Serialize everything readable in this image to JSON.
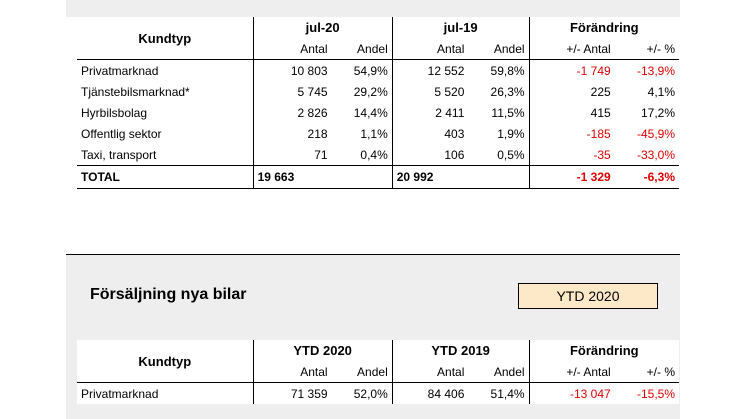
{
  "table1": {
    "kundtyp_label": "Kundtyp",
    "period_a": "jul-20",
    "period_b": "jul-19",
    "change_label": "Förändring",
    "sub_antal": "Antal",
    "sub_andel": "Andel",
    "sub_change_abs": "+/- Antal",
    "sub_change_pct": "+/- %",
    "rows": [
      {
        "name": "Privatmarknad",
        "a_antal": "10 803",
        "a_andel": "54,9%",
        "b_antal": "12 552",
        "b_andel": "59,8%",
        "chg": "-1 749",
        "pct": "-13,9%",
        "chg_neg": true,
        "pct_neg": true
      },
      {
        "name": "Tjänstebilsmarknad*",
        "a_antal": "5 745",
        "a_andel": "29,2%",
        "b_antal": "5 520",
        "b_andel": "26,3%",
        "chg": "225",
        "pct": "4,1%",
        "chg_neg": false,
        "pct_neg": false
      },
      {
        "name": "Hyrbilsbolag",
        "a_antal": "2 826",
        "a_andel": "14,4%",
        "b_antal": "2 411",
        "b_andel": "11,5%",
        "chg": "415",
        "pct": "17,2%",
        "chg_neg": false,
        "pct_neg": false
      },
      {
        "name": "Offentlig sektor",
        "a_antal": "218",
        "a_andel": "1,1%",
        "b_antal": "403",
        "b_andel": "1,9%",
        "chg": "-185",
        "pct": "-45,9%",
        "chg_neg": true,
        "pct_neg": true
      },
      {
        "name": "Taxi, transport",
        "a_antal": "71",
        "a_andel": "0,4%",
        "b_antal": "106",
        "b_andel": "0,5%",
        "chg": "-35",
        "pct": "-33,0%",
        "chg_neg": true,
        "pct_neg": true
      }
    ],
    "total": {
      "name": "TOTAL",
      "a_antal": "19 663",
      "b_antal": "20 992",
      "chg": "-1 329",
      "pct": "-6,3%"
    }
  },
  "section2": {
    "title": "Försäljning nya bilar",
    "selector_value": "YTD 2020"
  },
  "table2": {
    "kundtyp_label": "Kundtyp",
    "period_a": "YTD 2020",
    "period_b": "YTD 2019",
    "change_label": "Förändring",
    "sub_antal": "Antal",
    "sub_andel": "Andel",
    "sub_change_abs": "+/- Antal",
    "sub_change_pct": "+/- %",
    "rows": [
      {
        "name": "Privatmarknad",
        "a_antal": "71 359",
        "a_andel": "52,0%",
        "b_antal": "84 406",
        "b_andel": "51,4%",
        "chg": "-13 047",
        "pct": "-15,5%",
        "chg_neg": true,
        "pct_neg": true
      }
    ]
  },
  "colors": {
    "negative": "#e00000",
    "header_bg": "#eeeeee",
    "selector_bg": "#fde9c8"
  }
}
